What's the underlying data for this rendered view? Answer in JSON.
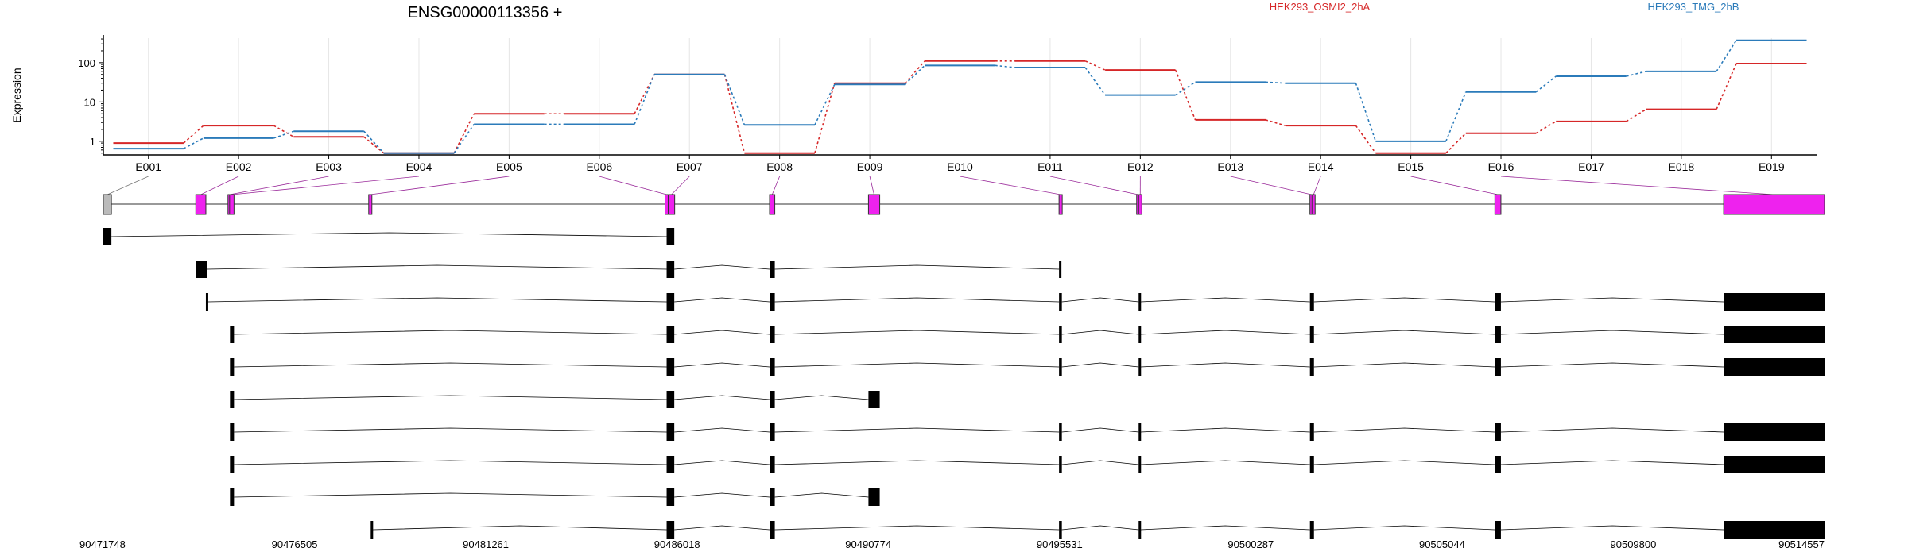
{
  "title": "ENSG00000113356 +",
  "colors": {
    "osmi": "#d62728",
    "tmg": "#2b7bba",
    "exon_fill": "#ee22ee",
    "exon_gray": "#bbbbbb",
    "connector": "#9a2a9a",
    "transcript": "#000000"
  },
  "chart_data": {
    "type": "line",
    "title": "ENSG00000113356 +",
    "ylabel": "Expression",
    "y_scale": "log",
    "yticks": [
      "1",
      "10",
      "100"
    ],
    "ylim": [
      0.45,
      420
    ],
    "grid": "vertical, light",
    "legend_placement": "top-right",
    "categories": [
      "E001",
      "E002",
      "E003",
      "E004",
      "E005",
      "E006",
      "E007",
      "E008",
      "E009",
      "E010",
      "E011",
      "E012",
      "E013",
      "E014",
      "E015",
      "E016",
      "E017",
      "E018",
      "E019"
    ],
    "series": [
      {
        "name": "HEK293_OSMI2_2hA",
        "color": "#d62728",
        "values": [
          0.9,
          2.5,
          1.3,
          0.5,
          5,
          5,
          50,
          0.5,
          30,
          110,
          110,
          65,
          3.5,
          2.5,
          0.5,
          1.6,
          3.2,
          6.5,
          95
        ]
      },
      {
        "name": "HEK293_TMG_2hB",
        "color": "#2b7bba",
        "values": [
          0.65,
          1.2,
          1.8,
          0.5,
          2.7,
          2.7,
          50,
          2.6,
          28,
          85,
          75,
          15,
          32,
          30,
          1,
          18,
          45,
          60,
          370
        ]
      }
    ]
  },
  "gene_model": {
    "coordinates": [
      "90471748",
      "90476505",
      "90481261",
      "90486018",
      "90490774",
      "90495531",
      "90500287",
      "90505044",
      "90509800",
      "90514557"
    ],
    "genomic_range": [
      90471748,
      90514557
    ],
    "exons": [
      {
        "id": "E001",
        "start": 90471748,
        "end": 90471948,
        "gray": true
      },
      {
        "id": "E002",
        "start": 90474048,
        "end": 90474298
      },
      {
        "id": "E003",
        "start": 90474848,
        "end": 90474888
      },
      {
        "id": "E004",
        "start": 90474888,
        "end": 90474998
      },
      {
        "id": "E005",
        "start": 90478348,
        "end": 90478408
      },
      {
        "id": "E006",
        "start": 90485718,
        "end": 90485798
      },
      {
        "id": "E007",
        "start": 90485798,
        "end": 90485958
      },
      {
        "id": "E008",
        "start": 90488318,
        "end": 90488448
      },
      {
        "id": "E009",
        "start": 90490778,
        "end": 90491058
      },
      {
        "id": "E010",
        "start": 90495518,
        "end": 90495588
      },
      {
        "id": "E011",
        "start": 90497448,
        "end": 90497498
      },
      {
        "id": "E012",
        "start": 90497498,
        "end": 90497548
      },
      {
        "id": "E013",
        "start": 90501758,
        "end": 90501808
      },
      {
        "id": "E014",
        "start": 90501808,
        "end": 90501858
      },
      {
        "id": "E015",
        "start": 90506358,
        "end": 90506508
      },
      {
        "id": "E016",
        "start": 90512048,
        "end": 90514557
      }
    ],
    "transcripts": [
      [
        [
          90471748,
          90471948
        ],
        [
          90485758,
          90485948
        ]
      ],
      [
        [
          90474048,
          90474338
        ],
        [
          90485758,
          90485948
        ],
        [
          90488318,
          90488448
        ],
        [
          90495518,
          90495568
        ]
      ],
      [
        [
          90474298,
          90474348
        ],
        [
          90485758,
          90485948
        ],
        [
          90488318,
          90488448
        ],
        [
          90495518,
          90495588
        ],
        [
          90497498,
          90497548
        ],
        [
          90501758,
          90501858
        ],
        [
          90506358,
          90506508
        ],
        [
          90512048,
          90514557
        ]
      ],
      [
        [
          90474898,
          90474998
        ],
        [
          90485758,
          90485948
        ],
        [
          90488318,
          90488448
        ],
        [
          90495518,
          90495588
        ],
        [
          90497498,
          90497548
        ],
        [
          90501758,
          90501858
        ],
        [
          90506358,
          90506508
        ],
        [
          90512048,
          90514557
        ]
      ],
      [
        [
          90474898,
          90474998
        ],
        [
          90485758,
          90485948
        ],
        [
          90488318,
          90488448
        ],
        [
          90495518,
          90495588
        ],
        [
          90497498,
          90497548
        ],
        [
          90501758,
          90501858
        ],
        [
          90506358,
          90506508
        ],
        [
          90512048,
          90514557
        ]
      ],
      [
        [
          90474898,
          90474998
        ],
        [
          90485758,
          90485948
        ],
        [
          90488318,
          90488448
        ],
        [
          90490778,
          90491058
        ]
      ],
      [
        [
          90474898,
          90474998
        ],
        [
          90485758,
          90485948
        ],
        [
          90488318,
          90488448
        ],
        [
          90495518,
          90495588
        ],
        [
          90497498,
          90497548
        ],
        [
          90501758,
          90501858
        ],
        [
          90506358,
          90506508
        ],
        [
          90512048,
          90514557
        ]
      ],
      [
        [
          90474898,
          90474998
        ],
        [
          90485758,
          90485948
        ],
        [
          90488318,
          90488448
        ],
        [
          90495518,
          90495588
        ],
        [
          90497498,
          90497548
        ],
        [
          90501758,
          90501858
        ],
        [
          90506358,
          90506508
        ],
        [
          90512048,
          90514557
        ]
      ],
      [
        [
          90474898,
          90474998
        ],
        [
          90485758,
          90485948
        ],
        [
          90488318,
          90488448
        ],
        [
          90490778,
          90491058
        ]
      ],
      [
        [
          90478398,
          90478448
        ],
        [
          90485758,
          90485948
        ],
        [
          90488318,
          90488448
        ],
        [
          90495518,
          90495588
        ],
        [
          90497498,
          90497548
        ],
        [
          90501758,
          90501858
        ],
        [
          90506358,
          90506508
        ],
        [
          90512048,
          90514557
        ]
      ]
    ]
  }
}
